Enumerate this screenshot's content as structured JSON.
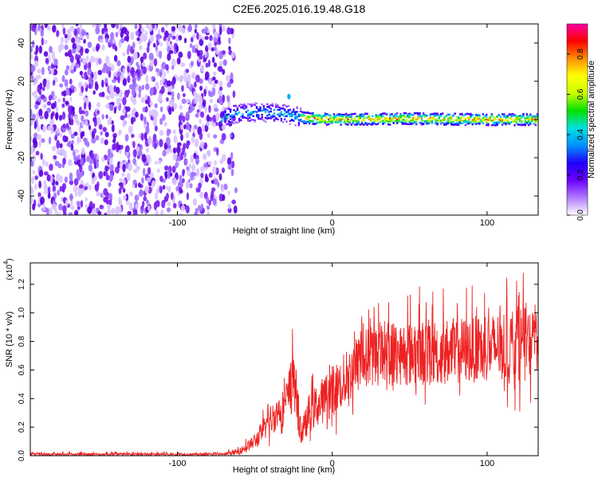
{
  "title": "C2E6.2025.016.19.48.G18",
  "chart_data": [
    {
      "type": "heatmap",
      "xlabel": "Height of straight line (km)",
      "ylabel": "Frequency (Hz)",
      "xlim": [
        -195,
        133
      ],
      "ylim": [
        -50,
        50
      ],
      "xticks": [
        -100,
        0,
        100
      ],
      "xtick_labels": [
        "-100",
        "0",
        "100"
      ],
      "yticks": [
        -40,
        -20,
        0,
        20,
        40
      ],
      "ytick_labels": [
        "-40",
        "-20",
        "0",
        "20",
        "40"
      ],
      "colorbar": {
        "label": "Normalized spectral amplitude",
        "range": [
          0,
          0.95
        ],
        "ticks": [
          0,
          0.2,
          0.4,
          0.6,
          0.8
        ],
        "tick_labels": [
          "0.0",
          "0.2",
          "0.4",
          "0.6",
          "0.8"
        ],
        "colors": [
          "#ffffff",
          "#b07bff",
          "#6a00ff",
          "#2000ff",
          "#0090ff",
          "#00e0e0",
          "#00e000",
          "#c8ff00",
          "#ffff00",
          "#ff9000",
          "#ff0000",
          "#ff00a0"
        ]
      },
      "regions": [
        {
          "description": "noise",
          "x_range": [
            -195,
            -62
          ],
          "y_range": [
            -50,
            50
          ],
          "amplitude": 0.15
        },
        {
          "description": "signal track",
          "x_range": [
            -72,
            133
          ],
          "center_hz": [
            [
              -72,
              0
            ],
            [
              -65,
              3
            ],
            [
              -45,
              4
            ],
            [
              -30,
              3
            ],
            [
              -20,
              1
            ],
            [
              0,
              0
            ],
            [
              50,
              0.5
            ],
            [
              100,
              0
            ],
            [
              133,
              0
            ]
          ],
          "peak_amplitude": 0.95
        }
      ],
      "annotations": []
    },
    {
      "type": "line",
      "xlabel": "Height of straight line (km)",
      "ylabel": "SNR (10 * v/v)",
      "ylabel_multiplier": "(x10",
      "ylabel_multiplier_exp": "4",
      "ylabel_multiplier_close": ")",
      "xlim": [
        -195,
        133
      ],
      "ylim": [
        0,
        1.35
      ],
      "xticks": [
        -100,
        0,
        100
      ],
      "xtick_labels": [
        "-100",
        "0",
        "100"
      ],
      "yticks": [
        0,
        0.2,
        0.4,
        0.6,
        0.8,
        1.0,
        1.2
      ],
      "ytick_labels": [
        "0.0",
        "0.2",
        "0.4",
        "0.6",
        "0.8",
        "1.0",
        "1.2"
      ],
      "series": [
        {
          "color": "#ee2222",
          "envelope": [
            {
              "x": -195,
              "min": 0.0,
              "mean": 0.01,
              "max": 0.03
            },
            {
              "x": -70,
              "min": 0.0,
              "mean": 0.01,
              "max": 0.03
            },
            {
              "x": -60,
              "min": 0.0,
              "mean": 0.03,
              "max": 0.08
            },
            {
              "x": -50,
              "min": 0.02,
              "mean": 0.1,
              "max": 0.2
            },
            {
              "x": -40,
              "min": 0.05,
              "mean": 0.25,
              "max": 0.45
            },
            {
              "x": -30,
              "min": 0.1,
              "mean": 0.35,
              "max": 0.6
            },
            {
              "x": -25,
              "min": 0.1,
              "mean": 0.55,
              "max": 0.95
            },
            {
              "x": -20,
              "min": 0.02,
              "mean": 0.15,
              "max": 0.35
            },
            {
              "x": -15,
              "min": 0.05,
              "mean": 0.3,
              "max": 0.55
            },
            {
              "x": 0,
              "min": 0.1,
              "mean": 0.45,
              "max": 0.75
            },
            {
              "x": 10,
              "min": 0.2,
              "mean": 0.55,
              "max": 0.9
            },
            {
              "x": 20,
              "min": 0.3,
              "mean": 0.68,
              "max": 1.05
            },
            {
              "x": 30,
              "min": 0.35,
              "mean": 0.72,
              "max": 1.2
            },
            {
              "x": 60,
              "min": 0.35,
              "mean": 0.72,
              "max": 1.2
            },
            {
              "x": 100,
              "min": 0.35,
              "mean": 0.75,
              "max": 1.2
            },
            {
              "x": 125,
              "min": 0.3,
              "mean": 0.8,
              "max": 1.3
            },
            {
              "x": 133,
              "min": 0.4,
              "mean": 0.8,
              "max": 1.1
            }
          ]
        }
      ]
    }
  ]
}
